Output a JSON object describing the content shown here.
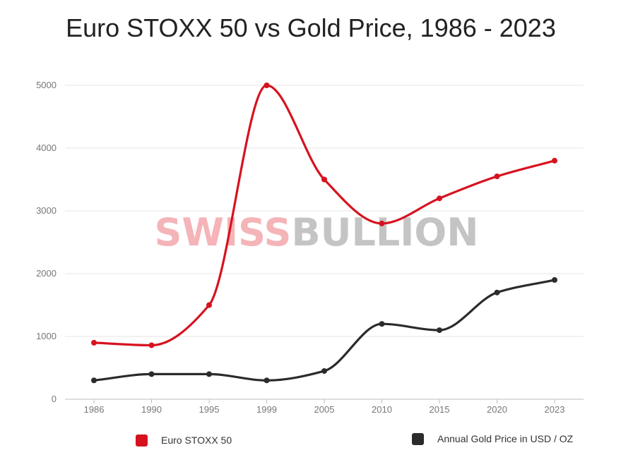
{
  "chart_data": {
    "type": "line",
    "title": "Euro STOXX 50  vs  Gold Price, 1986 - 2023",
    "xlabel": "",
    "ylabel": "",
    "categories": [
      "1986",
      "1990",
      "1995",
      "1999",
      "2005",
      "2010",
      "2015",
      "2020",
      "2023"
    ],
    "ylim": [
      0,
      5000
    ],
    "yticks": [
      "0",
      "1000",
      "2000",
      "3000",
      "4000",
      "5000"
    ],
    "grid": true,
    "legend_position": "bottom",
    "series": [
      {
        "name": "Euro STOXX 50",
        "color": "#d7121f",
        "values": [
          900,
          860,
          1500,
          5000,
          3500,
          2800,
          3200,
          3550,
          3800
        ]
      },
      {
        "name": "Annual Gold Price in USD / OZ",
        "color": "#2b2b2b",
        "values": [
          300,
          400,
          400,
          300,
          450,
          1200,
          1100,
          1700,
          1900
        ]
      }
    ]
  },
  "watermark": {
    "part1": "SWISS",
    "part2": "BULLION",
    "color1": "#f4b4b8",
    "color2": "#c4c4c4"
  }
}
